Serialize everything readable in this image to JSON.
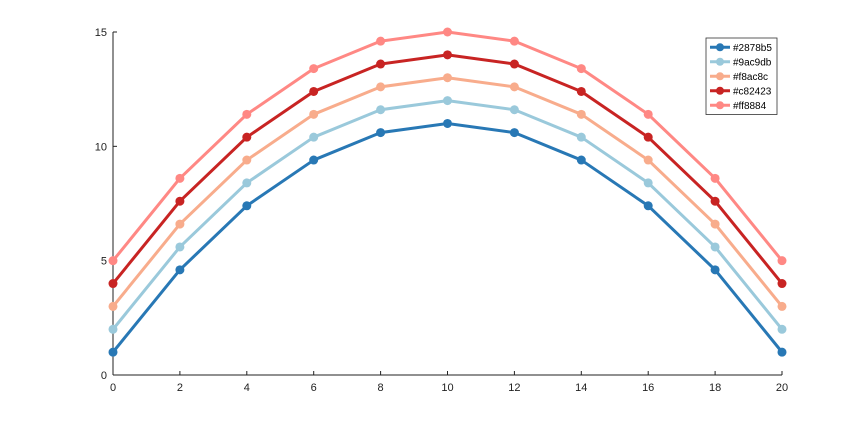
{
  "chart_data": {
    "type": "line",
    "title": "",
    "xlabel": "",
    "ylabel": "",
    "xlim": [
      0,
      20
    ],
    "ylim": [
      0,
      15
    ],
    "xticks": [
      0,
      2,
      4,
      6,
      8,
      10,
      12,
      14,
      16,
      18,
      20
    ],
    "yticks": [
      0,
      5,
      10,
      15
    ],
    "grid": false,
    "legend_position": "top-right",
    "x": [
      0,
      2,
      4,
      6,
      8,
      10,
      12,
      14,
      16,
      18,
      20
    ],
    "series": [
      {
        "name": "#2878b5",
        "color": "#2878b5",
        "values": [
          1,
          4.6,
          7.4,
          9.4,
          10.6,
          11,
          10.6,
          9.4,
          7.4,
          4.6,
          1
        ]
      },
      {
        "name": "#9ac9db",
        "color": "#9ac9db",
        "values": [
          2,
          5.6,
          8.4,
          10.4,
          11.6,
          12,
          11.6,
          10.4,
          8.4,
          5.6,
          2
        ]
      },
      {
        "name": "#f8ac8c",
        "color": "#f8ac8c",
        "values": [
          3,
          6.6,
          9.4,
          11.4,
          12.6,
          13,
          12.6,
          11.4,
          9.4,
          6.6,
          3
        ]
      },
      {
        "name": "#c82423",
        "color": "#c82423",
        "values": [
          4,
          7.6,
          10.4,
          12.4,
          13.6,
          14,
          13.6,
          12.4,
          10.4,
          7.6,
          4
        ]
      },
      {
        "name": "#ff8884",
        "color": "#ff8884",
        "values": [
          5,
          8.6,
          11.4,
          13.4,
          14.6,
          15,
          14.6,
          13.4,
          11.4,
          8.6,
          5
        ]
      }
    ]
  }
}
